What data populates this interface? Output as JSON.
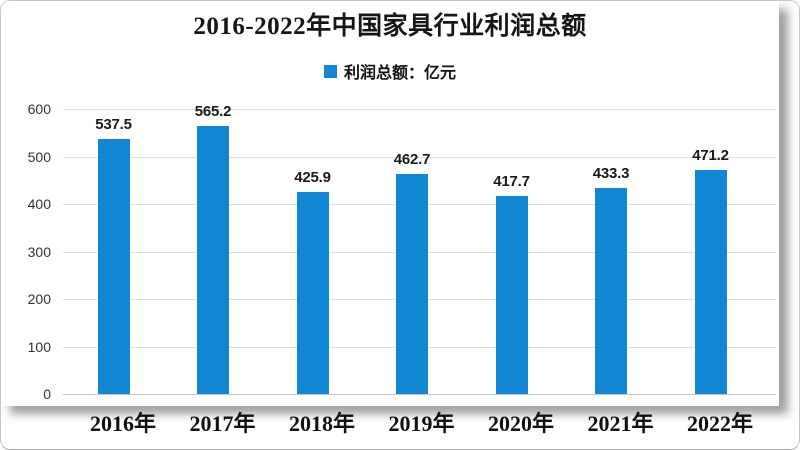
{
  "chart": {
    "legend_label": "利润总额：亿元"
  },
  "chart_data": {
    "type": "bar",
    "title": "2016-2022年中国家具行业利润总额",
    "categories": [
      "2016年",
      "2017年",
      "2018年",
      "2019年",
      "2020年",
      "2021年",
      "2022年"
    ],
    "values": [
      537.5,
      565.2,
      425.9,
      462.7,
      417.7,
      433.3,
      471.2
    ],
    "data_labels": [
      "537.5",
      "565.2",
      "425.9",
      "462.7",
      "417.7",
      "433.3",
      "471.2"
    ],
    "series_name": "利润总额：亿元",
    "bar_color": "#1287d3",
    "xlabel": "",
    "ylabel": "",
    "ylim": [
      0,
      600
    ],
    "yticks": [
      600,
      500,
      400,
      300,
      200,
      100,
      0
    ],
    "grid": true,
    "legend_position": "top"
  }
}
